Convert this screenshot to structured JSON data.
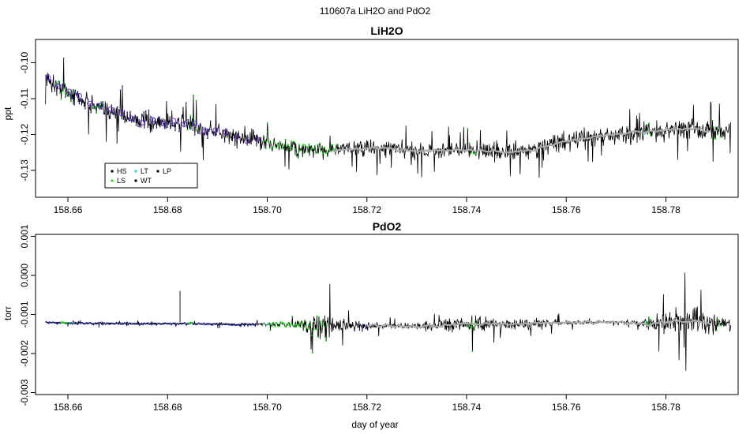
{
  "figure": {
    "title": "110607a   LiH2O and PdO2",
    "xlabel": "day of year"
  },
  "colors": {
    "HS": "#000000",
    "LS": "#22dd22",
    "LT": "#33cccc",
    "WT": "#000000",
    "LP": "#000000",
    "early": "#1a1a8c",
    "marker": "#6a2bd9",
    "smooth": "#aaaaaa"
  },
  "chart_data": [
    {
      "type": "line",
      "title": "LiH2O",
      "ylabel": "ppt",
      "xlim": [
        158.6535,
        158.7945
      ],
      "ylim": [
        -0.1375,
        -0.0935
      ],
      "x_ticks": [
        158.66,
        158.68,
        158.7,
        158.72,
        158.74,
        158.76,
        158.78
      ],
      "x_tick_labels": [
        "158.66",
        "158.68",
        "158.70",
        "158.72",
        "158.74",
        "158.76",
        "158.78"
      ],
      "y_ticks": [
        -0.1,
        -0.11,
        -0.12,
        -0.13
      ],
      "y_tick_labels": [
        "-0.10",
        "-0.11",
        "-0.12",
        "-0.13"
      ],
      "legend": {
        "position": "bottom-left",
        "entries": [
          {
            "label": "HS",
            "color": "#000000"
          },
          {
            "label": "LS",
            "color": "#22dd22"
          },
          {
            "label": "LT",
            "color": "#33cccc"
          },
          {
            "label": "WT",
            "color": "#000000"
          },
          {
            "label": "LP",
            "color": "#000000"
          }
        ]
      },
      "series": [
        {
          "x": [
            158.6555,
            158.658,
            158.662,
            158.666,
            158.67,
            158.674,
            158.678,
            158.682,
            158.686,
            158.69,
            158.694,
            158.698,
            158.702,
            158.706,
            158.71,
            158.714,
            158.718,
            158.722,
            158.726,
            158.73,
            158.734,
            158.738,
            158.742,
            158.746,
            158.75,
            158.754,
            158.758,
            158.762,
            158.766,
            158.77,
            158.774,
            158.778,
            158.782,
            158.786,
            158.79,
            158.793
          ],
          "values": [
            -0.1045,
            -0.1065,
            -0.1095,
            -0.1125,
            -0.114,
            -0.116,
            -0.117,
            -0.1165,
            -0.118,
            -0.1195,
            -0.1205,
            -0.1215,
            -0.123,
            -0.124,
            -0.1245,
            -0.1243,
            -0.124,
            -0.1238,
            -0.1242,
            -0.1245,
            -0.1244,
            -0.1243,
            -0.1245,
            -0.1248,
            -0.125,
            -0.124,
            -0.1225,
            -0.1215,
            -0.1205,
            -0.12,
            -0.1195,
            -0.119,
            -0.1185,
            -0.1185,
            -0.119,
            -0.1185
          ],
          "amplitude": [
            0.004,
            0.005,
            0.0045,
            0.0045,
            0.0045,
            0.0045,
            0.0045,
            0.0045,
            0.0045,
            0.0045,
            0.0045,
            0.0045,
            0.0045,
            0.0045,
            0.004,
            0.004,
            0.004,
            0.004,
            0.004,
            0.004,
            0.004,
            0.004,
            0.004,
            0.0045,
            0.005,
            0.0045,
            0.0045,
            0.0045,
            0.0045,
            0.0045,
            0.0045,
            0.005,
            0.0045,
            0.0045,
            0.0045,
            0.004
          ]
        }
      ]
    },
    {
      "type": "line",
      "title": "PdO2",
      "ylabel": "torr",
      "xlim": [
        158.6535,
        158.7945
      ],
      "ylim": [
        -0.00305,
        0.00105
      ],
      "x_ticks": [
        158.66,
        158.68,
        158.7,
        158.72,
        158.74,
        158.76,
        158.78
      ],
      "x_tick_labels": [
        "158.66",
        "158.68",
        "158.70",
        "158.72",
        "158.74",
        "158.76",
        "158.78"
      ],
      "y_ticks": [
        0.001,
        0.0,
        -0.001,
        -0.002,
        -0.003
      ],
      "y_tick_labels": [
        "0.001",
        "0.000",
        "-0.001",
        "-0.002",
        "-0.003"
      ],
      "series": [
        {
          "x": [
            158.6555,
            158.665,
            158.675,
            158.685,
            158.695,
            158.7,
            158.705,
            158.709,
            158.712,
            158.716,
            158.72,
            158.725,
            158.73,
            158.735,
            158.738,
            158.742,
            158.745,
            158.748,
            158.752,
            158.756,
            158.76,
            158.765,
            158.77,
            158.774,
            158.777,
            158.78,
            158.784,
            158.787,
            158.79,
            158.793
          ],
          "values": [
            -0.0012,
            -0.00122,
            -0.00123,
            -0.00123,
            -0.00125,
            -0.00125,
            -0.00125,
            -0.00128,
            -0.0013,
            -0.00128,
            -0.00128,
            -0.0013,
            -0.0013,
            -0.00128,
            -0.00125,
            -0.00125,
            -0.00125,
            -0.00126,
            -0.00124,
            -0.00122,
            -0.00122,
            -0.0012,
            -0.0012,
            -0.00122,
            -0.00125,
            -0.0012,
            -0.00115,
            -0.0012,
            -0.00122,
            -0.0012
          ],
          "amplitude": [
            4e-05,
            4e-05,
            4e-05,
            4e-05,
            5e-05,
            8e-05,
            0.00015,
            0.00045,
            0.0006,
            0.0003,
            0.00015,
            0.00012,
            0.00015,
            0.00025,
            0.00035,
            0.0004,
            0.0003,
            0.00025,
            0.0003,
            0.0002,
            0.00012,
            6e-05,
            6e-05,
            8e-05,
            0.0003,
            0.0005,
            0.0007,
            0.0006,
            0.0004,
            0.00015
          ]
        }
      ]
    }
  ]
}
